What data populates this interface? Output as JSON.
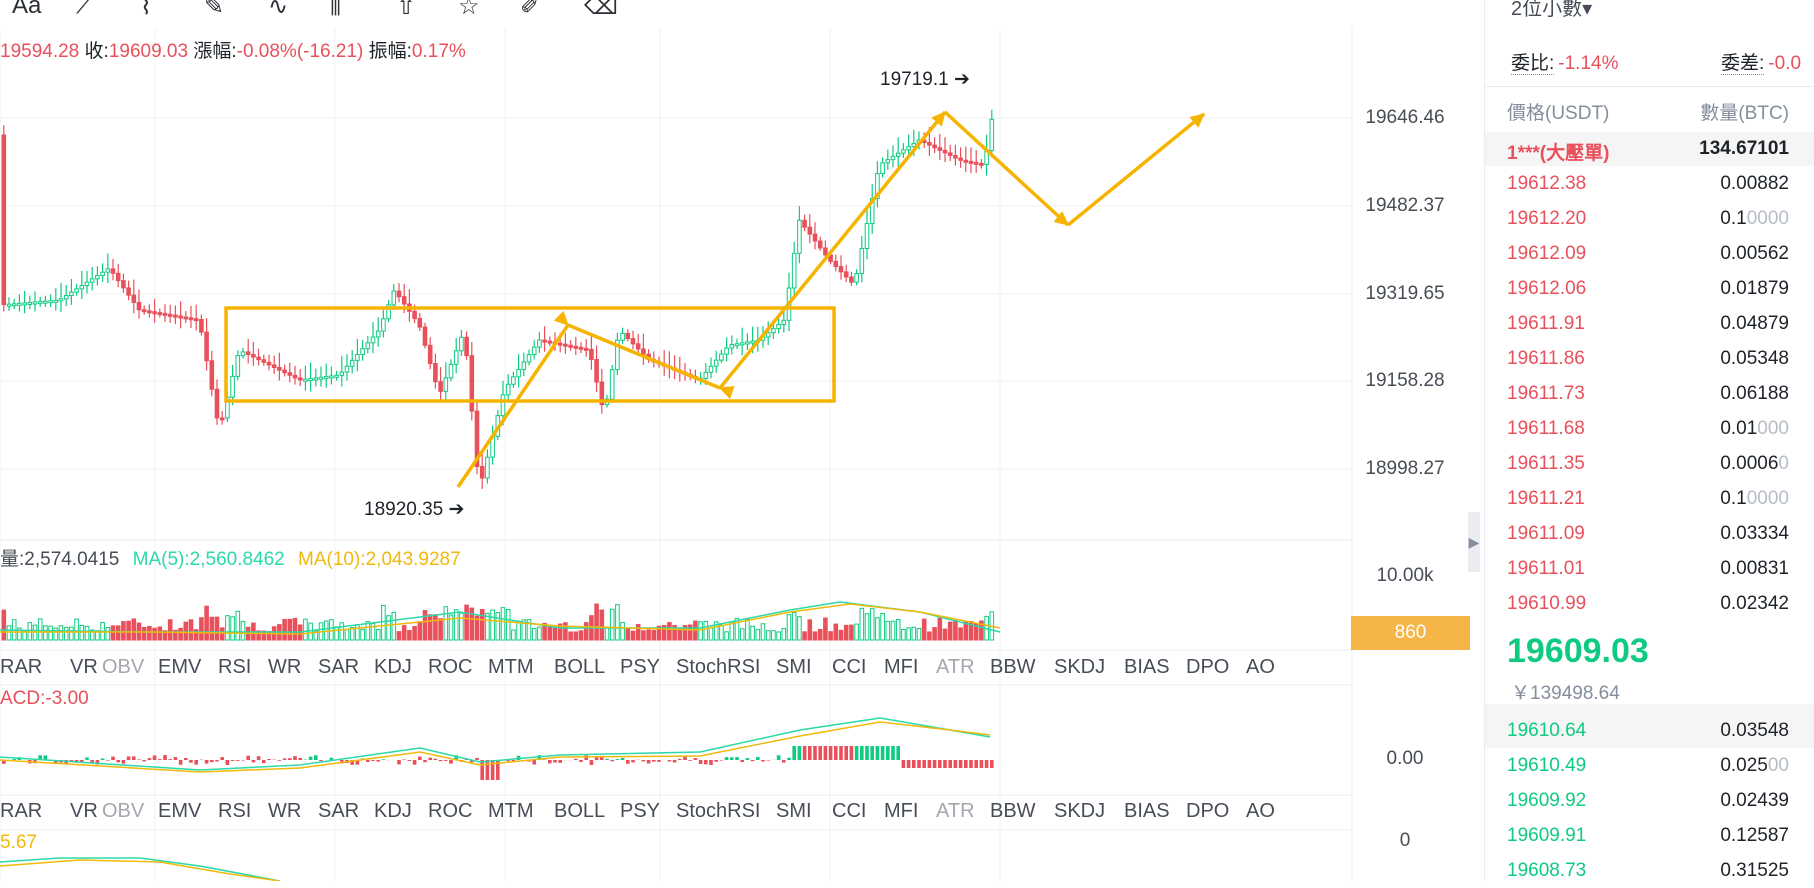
{
  "toolbar": {
    "icons": [
      "text-icon",
      "ruler-icon",
      "magnet-icon",
      "pen-icon",
      "curve-icon",
      "candles-icon",
      "upload-icon",
      "star-icon",
      "edit-icon",
      "trash-icon"
    ],
    "font_label": "Aa"
  },
  "ohlc": {
    "low_value": "19594.28",
    "close_label": "收:",
    "close_value": "19609.03",
    "change_label": "漲幅:",
    "change_value": "-0.08%(-16.21)",
    "amplitude_label": "振幅:",
    "amplitude_value": "0.17%"
  },
  "price_axis": [
    "19646.46",
    "19482.37",
    "19319.65",
    "19158.28",
    "18998.27"
  ],
  "annotations": {
    "high": "19719.1",
    "low": "18920.35"
  },
  "volume": {
    "vol_text": "量:2,574.0415",
    "ma5_text": "MA(5):2,560.8462",
    "ma10_text": "MA(10):2,043.9287",
    "axis_top": "10.00k",
    "badge": "860"
  },
  "indicator_tabs": [
    "BRAR",
    "VR",
    "OBV",
    "EMV",
    "RSI",
    "WR",
    "SAR",
    "KDJ",
    "ROC",
    "MTM",
    "BOLL",
    "PSY",
    "StochRSI",
    "SMI",
    "CCI",
    "MFI",
    "ATR",
    "BBW",
    "SKDJ",
    "BIAS",
    "DPO",
    "AO"
  ],
  "indicator_tabs_visible": [
    "RAR",
    "VR",
    "OBV",
    "EMV",
    "RSI",
    "WR",
    "SAR",
    "KDJ",
    "ROC",
    "MTM",
    "BOLL",
    "PSY",
    "StochRSI",
    "SMI",
    "CCI",
    "MFI",
    "ATR",
    "BBW",
    "SKDJ",
    "BIAS",
    "DPO",
    "AO"
  ],
  "dim_tabs": [
    "OBV",
    "ATR"
  ],
  "macd": {
    "text": "ACD:-3.00",
    "axis": "0.00"
  },
  "lower": {
    "text": "5.67",
    "axis": "0"
  },
  "orderbook": {
    "precision": "2位小數",
    "ratio_label": "委比:",
    "ratio_value": "-1.14%",
    "diff_label": "委差:",
    "diff_value": "-0.0",
    "price_header": "價格(USDT)",
    "amount_header": "數量(BTC)",
    "big_order_price": "1***(大壓單)",
    "big_order_amount": "134.67101",
    "asks": [
      {
        "price": "19612.38",
        "amount": "0.00882",
        "fade": ""
      },
      {
        "price": "19612.20",
        "amount": "0.1",
        "fade": "0000"
      },
      {
        "price": "19612.09",
        "amount": "0.00562",
        "fade": ""
      },
      {
        "price": "19612.06",
        "amount": "0.01879",
        "fade": ""
      },
      {
        "price": "19611.91",
        "amount": "0.04879",
        "fade": ""
      },
      {
        "price": "19611.86",
        "amount": "0.05348",
        "fade": ""
      },
      {
        "price": "19611.73",
        "amount": "0.06188",
        "fade": ""
      },
      {
        "price": "19611.68",
        "amount": "0.01",
        "fade": "000"
      },
      {
        "price": "19611.35",
        "amount": "0.0006",
        "fade": "0"
      },
      {
        "price": "19611.21",
        "amount": "0.1",
        "fade": "0000"
      },
      {
        "price": "19611.09",
        "amount": "0.03334",
        "fade": ""
      },
      {
        "price": "19611.01",
        "amount": "0.00831",
        "fade": ""
      },
      {
        "price": "19610.99",
        "amount": "0.02342",
        "fade": ""
      }
    ],
    "last_price": "19609.03",
    "last_price_cny": "￥139498.64",
    "bids": [
      {
        "price": "19610.64",
        "amount": "0.03548",
        "fade": ""
      },
      {
        "price": "19610.49",
        "amount": "0.025",
        "fade": "00"
      },
      {
        "price": "19609.92",
        "amount": "0.02439",
        "fade": ""
      },
      {
        "price": "19609.91",
        "amount": "0.12587",
        "fade": ""
      },
      {
        "price": "19608.73",
        "amount": "0.31525",
        "fade": ""
      }
    ]
  },
  "colors": {
    "up": "#0ecb81",
    "down": "#e8505b",
    "ma5": "#2bd9a9",
    "ma10": "#f0b90b",
    "drawing": "#f6b400"
  }
}
